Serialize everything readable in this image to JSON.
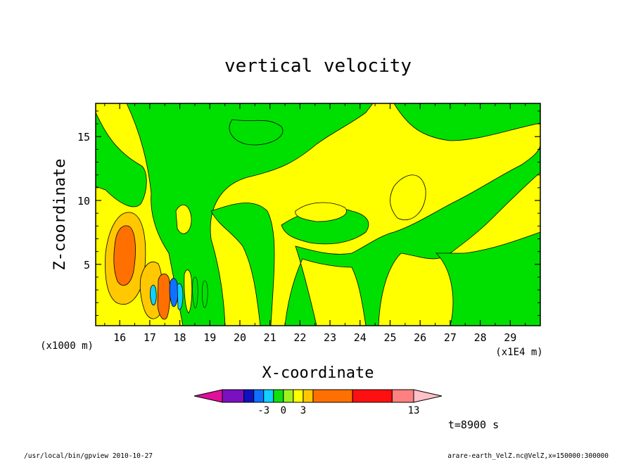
{
  "chart_data": {
    "type": "heatmap",
    "title": "vertical velocity",
    "xlabel": "X-coordinate",
    "ylabel": "Z-coordinate",
    "x_units": "(x1E4 m)",
    "y_units": "(x1000 m)",
    "xlim": [
      15.2,
      30.0
    ],
    "ylim": [
      0.2,
      17.6
    ],
    "x_ticks": [
      16,
      17,
      18,
      19,
      20,
      21,
      22,
      23,
      24,
      25,
      26,
      27,
      28,
      29
    ],
    "y_ticks": [
      5,
      10,
      15
    ],
    "colorbar": {
      "colors": [
        "#e0109a",
        "#7a10c0",
        "#1010c0",
        "#1070ff",
        "#10d0ff",
        "#10e010",
        "#a0f020",
        "#ffff00",
        "#ffc800",
        "#ff7000",
        "#ff1010",
        "#ff8080",
        "#ffc0c8"
      ],
      "labels": [
        {
          "value": -3,
          "text": "-3"
        },
        {
          "value": 0,
          "text": "0"
        },
        {
          "value": 3,
          "text": "3"
        },
        {
          "value": 13,
          "text": "13"
        }
      ]
    },
    "time_label": "t=8900 s",
    "footer_left": "/usr/local/bin/gpview  2010-10-27",
    "footer_right": "arare-earth_VelZ.nc@VelZ,x=150000:300000"
  }
}
